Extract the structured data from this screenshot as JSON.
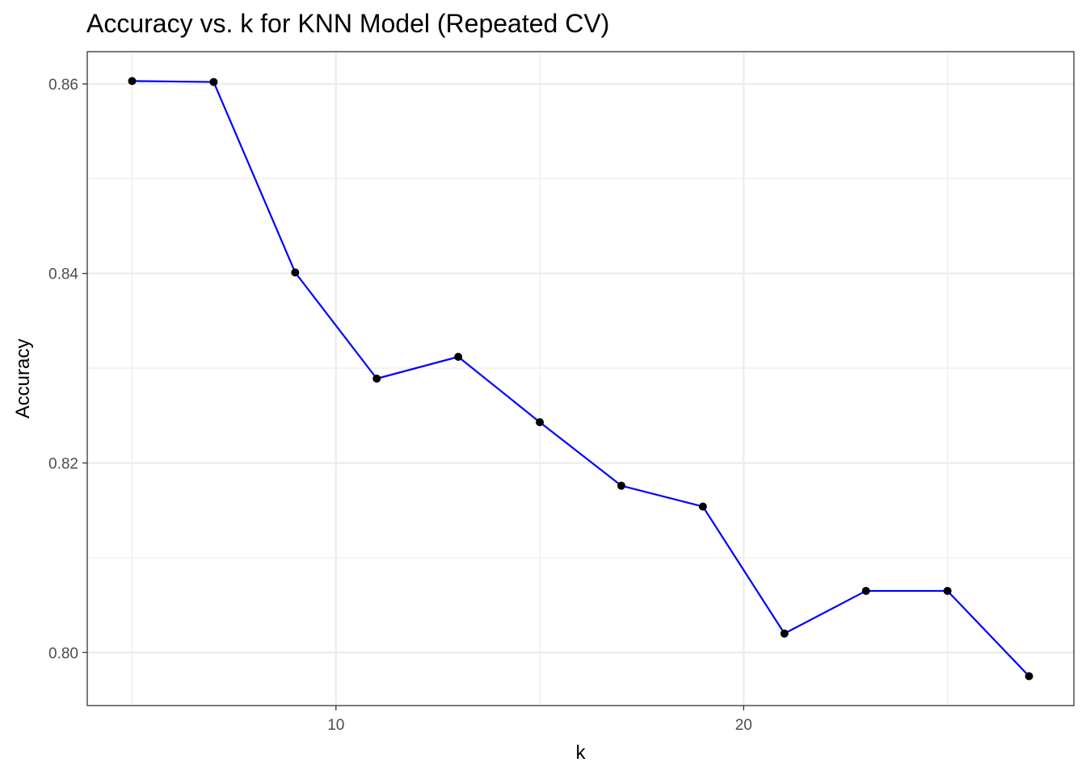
{
  "chart_data": {
    "type": "line",
    "title": "Accuracy vs. k for KNN Model (Repeated CV)",
    "xlabel": "k",
    "ylabel": "Accuracy",
    "x": [
      5,
      7,
      9,
      11,
      13,
      15,
      17,
      19,
      21,
      23,
      25,
      27
    ],
    "series": [
      {
        "values": [
          0.8603,
          0.8602,
          0.8401,
          0.8289,
          0.8312,
          0.8243,
          0.8176,
          0.8154,
          0.802,
          0.8065,
          0.8065,
          0.7975
        ]
      }
    ],
    "xlim": [
      3.9,
      28.1
    ],
    "ylim": [
      0.7944,
      0.8634
    ],
    "x_ticks": [
      10,
      20
    ],
    "x_tick_labels": [
      "10",
      "20"
    ],
    "x_minor_ticks": [
      5,
      15,
      25
    ],
    "y_ticks": [
      0.8,
      0.82,
      0.84,
      0.86
    ],
    "y_tick_labels": [
      "0.80",
      "0.82",
      "0.84",
      "0.86"
    ],
    "y_minor_ticks": [
      0.81,
      0.83,
      0.85
    ],
    "line_color": "#0000ff",
    "point_color": "#000000",
    "grid": true,
    "legend": "none"
  }
}
